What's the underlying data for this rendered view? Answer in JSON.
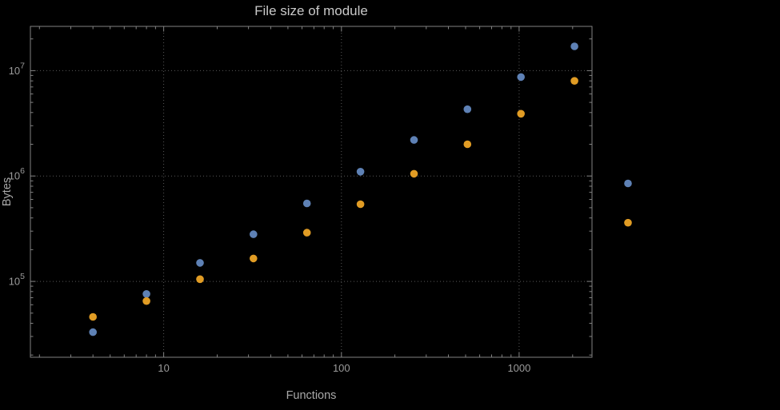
{
  "chart_data": {
    "type": "scatter",
    "title": "File size of module",
    "xlabel": "Functions",
    "ylabel": "Bytes",
    "x_scale": "log",
    "y_scale": "log",
    "grid": "dotted lines at decade ticks",
    "x_ticks": [
      10,
      100,
      1000
    ],
    "x_tick_labels": [
      "10",
      "100",
      "1000"
    ],
    "y_ticks": [
      100000,
      1000000,
      10000000
    ],
    "y_tick_labels": [
      {
        "base": "10",
        "exp": "5"
      },
      {
        "base": "10",
        "exp": "6"
      },
      {
        "base": "10",
        "exp": "7"
      }
    ],
    "x_range_log": [
      0.25,
      3.41
    ],
    "y_range_log": [
      4.28,
      7.42
    ],
    "marker_radius": 4.8,
    "series": [
      {
        "name": "blue",
        "color": "#5e81b5",
        "x": [
          4,
          8,
          16,
          32,
          64,
          128,
          256,
          512,
          1024,
          2048,
          4096
        ],
        "y": [
          33000,
          76000,
          150000,
          280000,
          550000,
          1100000,
          2200000,
          4300000,
          8700000,
          17000000,
          850000
        ]
      },
      {
        "name": "orange",
        "color": "#e19c24",
        "x": [
          4,
          8,
          16,
          32,
          64,
          128,
          256,
          512,
          1024,
          2048,
          4096
        ],
        "y": [
          46000,
          65000,
          105000,
          165000,
          290000,
          540000,
          1050000,
          2000000,
          3900000,
          8000000,
          360000
        ]
      }
    ],
    "style": {
      "background": "#000000",
      "frame_color": "#828282",
      "grid_color": "#585858",
      "title_color": "#c9c9c9",
      "label_color": "#a9a9a9",
      "tick_label_color": "#9b9b9b"
    }
  }
}
